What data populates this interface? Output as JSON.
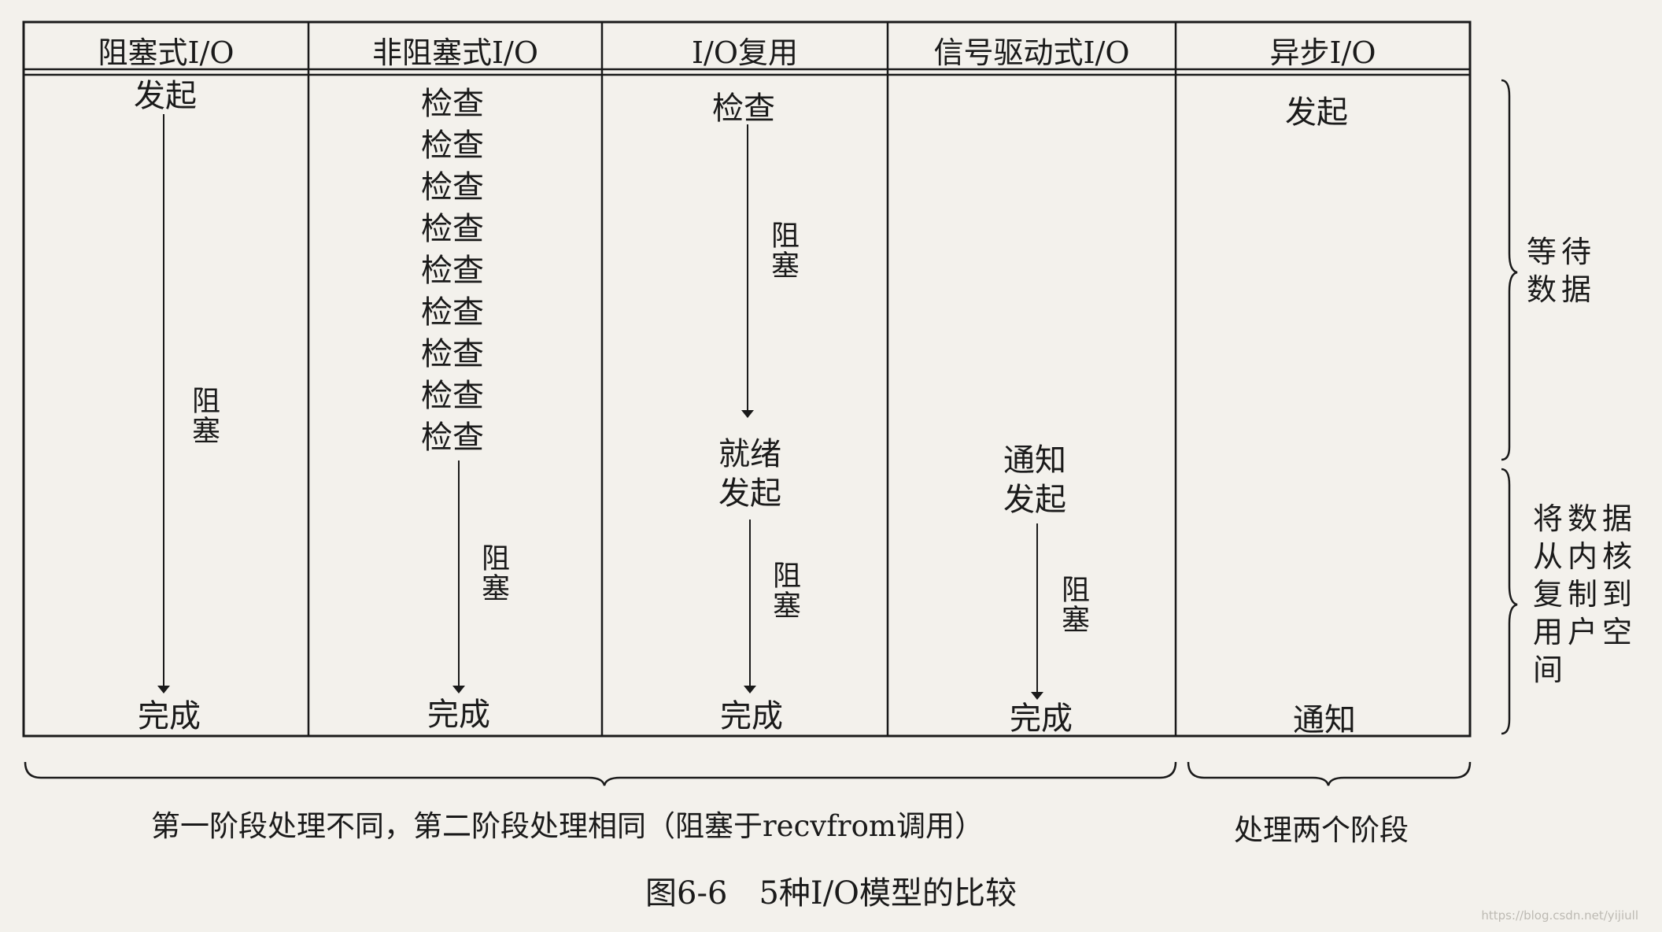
{
  "headers": [
    "阻塞式I/O",
    "非阻塞式I/O",
    "I/O复用",
    "信号驱动式I/O",
    "异步I/O"
  ],
  "col1": {
    "start": "发起",
    "block": "阻塞",
    "end": "完成"
  },
  "col2": {
    "checks": [
      "检查",
      "检查",
      "检查",
      "检查",
      "检查",
      "检查",
      "检查",
      "检查",
      "检查"
    ],
    "block": "阻塞",
    "end": "完成"
  },
  "col3": {
    "check": "检查",
    "block1": "阻塞",
    "ready": "就绪",
    "start": "发起",
    "block2": "阻塞",
    "end": "完成"
  },
  "col4": {
    "notify": "通知",
    "start": "发起",
    "block": "阻塞",
    "end": "完成"
  },
  "col5": {
    "start": "发起",
    "notify": "通知"
  },
  "side_labels": {
    "wait": [
      "等待",
      "数据"
    ],
    "copy": [
      "将数据",
      "从内核",
      "复制到",
      "用户空",
      "间"
    ]
  },
  "bottom_labels": {
    "left": "第一阶段处理不同，第二阶段处理相同（阻塞于recvfrom调用）",
    "right": "处理两个阶段"
  },
  "caption": "图6-6　5种I/O模型的比较",
  "watermark": "https://blog.csdn.net/yijiull"
}
